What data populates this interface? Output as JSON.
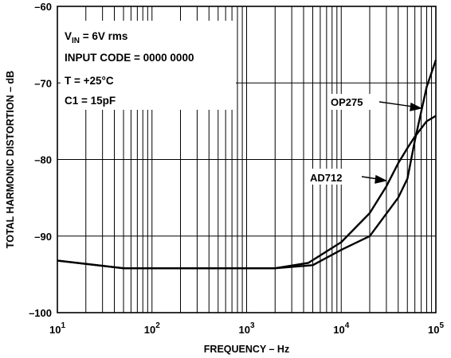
{
  "chart_data": {
    "type": "line",
    "x_scale": "log",
    "xlim": [
      10,
      100000
    ],
    "ylim": [
      -100,
      -60
    ],
    "xlabel": "FREQUENCY – Hz",
    "ylabel": "TOTAL HARMONIC DISTORTION – dB",
    "x_ticks": [
      {
        "base": "10",
        "exp": "1"
      },
      {
        "base": "10",
        "exp": "2"
      },
      {
        "base": "10",
        "exp": "3"
      },
      {
        "base": "10",
        "exp": "4"
      },
      {
        "base": "10",
        "exp": "5"
      }
    ],
    "y_ticks": [
      "–60",
      "–70",
      "–80",
      "–90",
      "–100"
    ],
    "y_tick_values": [
      -60,
      -70,
      -80,
      -90,
      -100
    ],
    "grid": true,
    "conditions": {
      "vin_prefix": "V",
      "vin_sub": "IN",
      "vin_suffix": " = 6V rms",
      "input_code": "INPUT CODE = 0000 0000",
      "temp": "T = +25°C",
      "c1": "C1 = 15pF"
    },
    "series": [
      {
        "name": "OP275",
        "x": [
          10,
          50,
          100,
          1000,
          2000,
          5000,
          10000,
          20000,
          40000,
          50000,
          60000,
          80000,
          100000
        ],
        "y": [
          -93.2,
          -94.2,
          -94.2,
          -94.2,
          -94.2,
          -93.8,
          -91.8,
          -90.0,
          -85.0,
          -82.5,
          -77.5,
          -70.5,
          -67.0
        ]
      },
      {
        "name": "AD712",
        "x": [
          10,
          50,
          100,
          1000,
          2000,
          4500,
          10000,
          20000,
          30000,
          40000,
          50000,
          60000,
          80000,
          100000
        ],
        "y": [
          -93.2,
          -94.2,
          -94.2,
          -94.2,
          -94.2,
          -93.5,
          -90.8,
          -87.0,
          -83.5,
          -80.5,
          -78.5,
          -77.0,
          -75.0,
          -74.3
        ]
      }
    ]
  }
}
